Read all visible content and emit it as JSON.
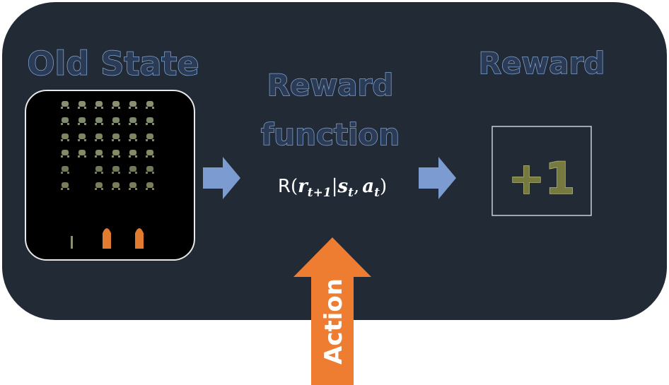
{
  "old_state": {
    "title": "Old State"
  },
  "reward_function": {
    "title_lines": [
      "Reward",
      "function"
    ],
    "formula": {
      "name": "R",
      "open": "(",
      "r": "r",
      "r_sub": "t+1",
      "bar": "|",
      "s": "s",
      "s_sub": "t",
      "comma": ",",
      "a": "a",
      "a_sub": "t",
      "close": ")"
    }
  },
  "reward": {
    "title": "Reward",
    "value": "+1"
  },
  "action": {
    "label": "Action"
  }
}
